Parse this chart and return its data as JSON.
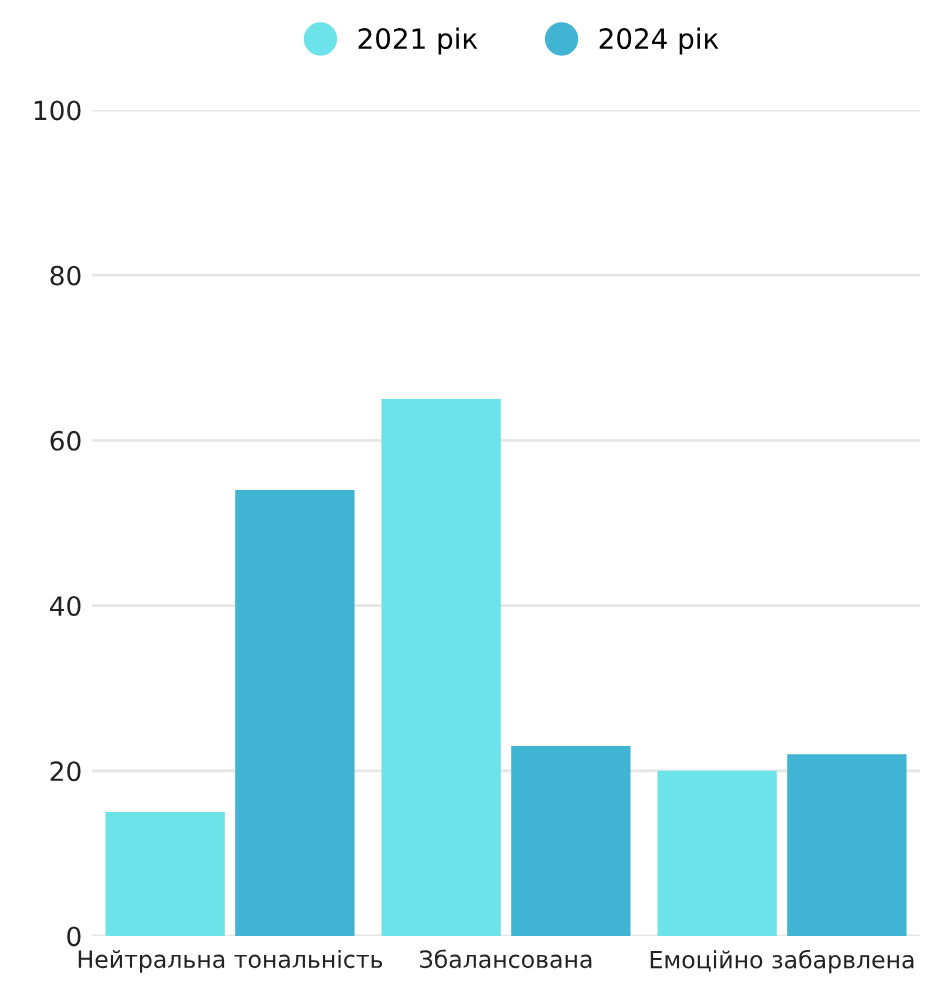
{
  "chart_data": {
    "type": "bar",
    "categories": [
      "Нейтральна тональність",
      "Збалансована",
      "Емоційно забарвлена"
    ],
    "series": [
      {
        "name": "2021 рік",
        "color": "#6ce3e8",
        "values": [
          15,
          65,
          20
        ]
      },
      {
        "name": "2024 рік",
        "color": "#41b4d4",
        "values": [
          54,
          23,
          22
        ]
      }
    ],
    "ylim": [
      0,
      100
    ],
    "yticks": [
      0,
      20,
      40,
      60,
      80,
      100
    ],
    "grid": "y",
    "legend": "top"
  }
}
